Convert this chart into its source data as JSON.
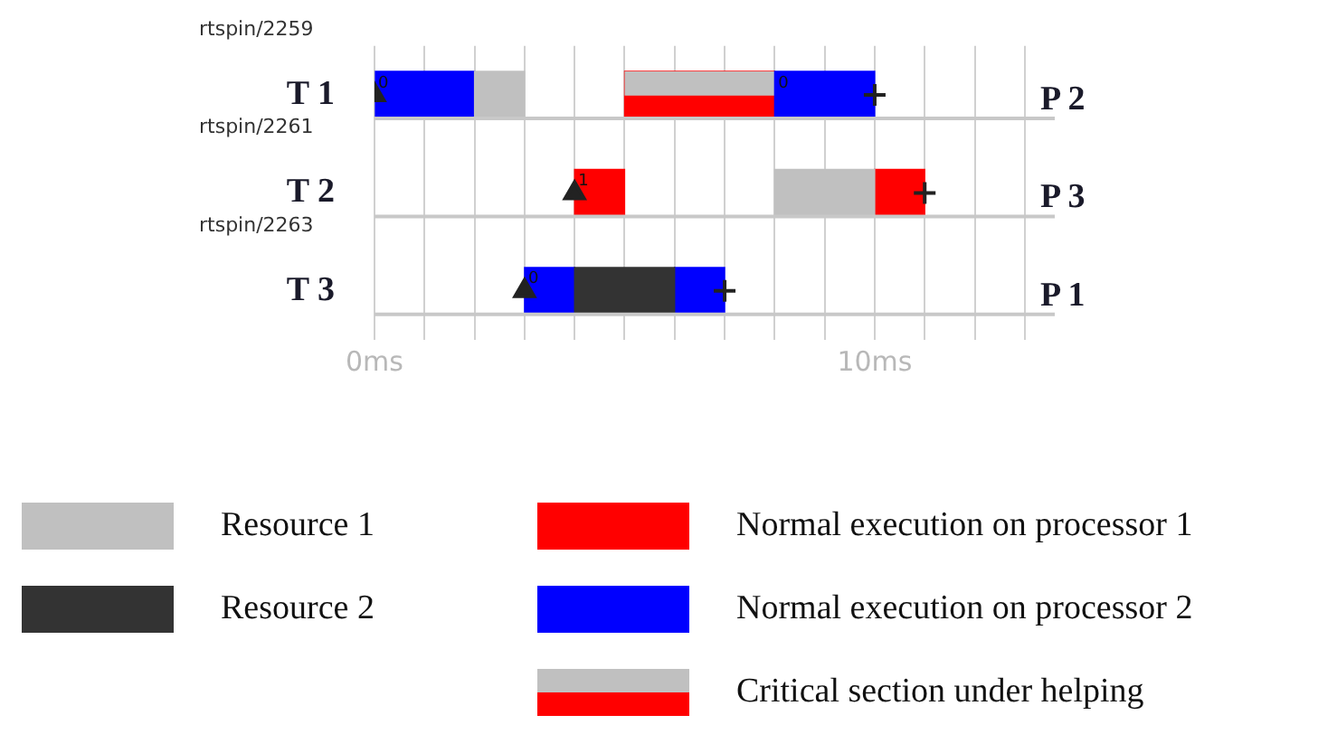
{
  "chart_data": {
    "type": "bar",
    "orientation": "horizontal",
    "categories": [
      "T 1",
      "T 2",
      "T 3"
    ],
    "y2_categories": [
      "P 2",
      "P 3",
      "P 1"
    ],
    "xlim": [
      0,
      13.6
    ],
    "xticks": [
      {
        "value": 0,
        "label": "0ms"
      },
      {
        "value": 1,
        "label": null
      },
      {
        "value": 2,
        "label": null
      },
      {
        "value": 3,
        "label": null
      },
      {
        "value": 4,
        "label": null
      },
      {
        "value": 5,
        "label": null
      },
      {
        "value": 6,
        "label": null
      },
      {
        "value": 7,
        "label": null
      },
      {
        "value": 8,
        "label": null
      },
      {
        "value": 9,
        "label": null
      },
      {
        "value": 10,
        "label": "10ms"
      },
      {
        "value": 11,
        "label": null
      },
      {
        "value": 12,
        "label": null
      },
      {
        "value": 13,
        "label": null
      }
    ],
    "grid": "x",
    "legend": "bottom",
    "series": [
      {
        "name": "Resource 1",
        "color": "#c0c0c0",
        "values": [
          1,
          2,
          null
        ],
        "base": [
          2,
          8,
          null
        ]
      },
      {
        "name": "Resource 2",
        "color": "#333333",
        "values": [
          null,
          null,
          2
        ],
        "base": [
          null,
          null,
          4
        ]
      },
      {
        "name": "Normal execution on processor 1",
        "color": "#ff0000",
        "values": [
          null,
          1,
          null
        ],
        "base": [
          null,
          4,
          null
        ]
      },
      {
        "color": "#ff0000",
        "values": [
          null,
          1,
          null
        ],
        "base": [
          null,
          10,
          null
        ]
      },
      {
        "name": "Normal execution on processor 2",
        "color": "#0000ff",
        "values": [
          2,
          null,
          1
        ],
        "base": [
          0,
          null,
          3
        ]
      },
      {
        "color": "#0000ff",
        "values": [
          2,
          null,
          1
        ],
        "base": [
          8,
          null,
          6
        ]
      },
      {
        "name": "Critical section under helping",
        "color": "#c0c0c0",
        "values": [
          3,
          null,
          null
        ],
        "base": [
          5,
          null,
          null
        ]
      },
      {
        "color": "#ff0000",
        "values": [
          3,
          null,
          null
        ],
        "base": [
          5,
          null,
          null
        ]
      },
      {
        "type": "scatter",
        "marker": "triangle",
        "color": "#222222",
        "values": [
          0,
          4,
          3
        ]
      },
      {
        "type": "scatter",
        "marker": "cross",
        "color": "#222222",
        "values": [
          10,
          11,
          7
        ]
      }
    ],
    "annotations": [
      "rtspin/2259",
      "rtspin/2261",
      "rtspin/2263",
      {
        "text": "0",
        "x": 0,
        "y": "T 1"
      },
      {
        "text": "0",
        "x": 8,
        "y": "T 1"
      },
      {
        "text": "1",
        "x": 4,
        "y": "T 2"
      },
      {
        "text": "0",
        "x": 3,
        "y": "T 3"
      }
    ]
  }
}
